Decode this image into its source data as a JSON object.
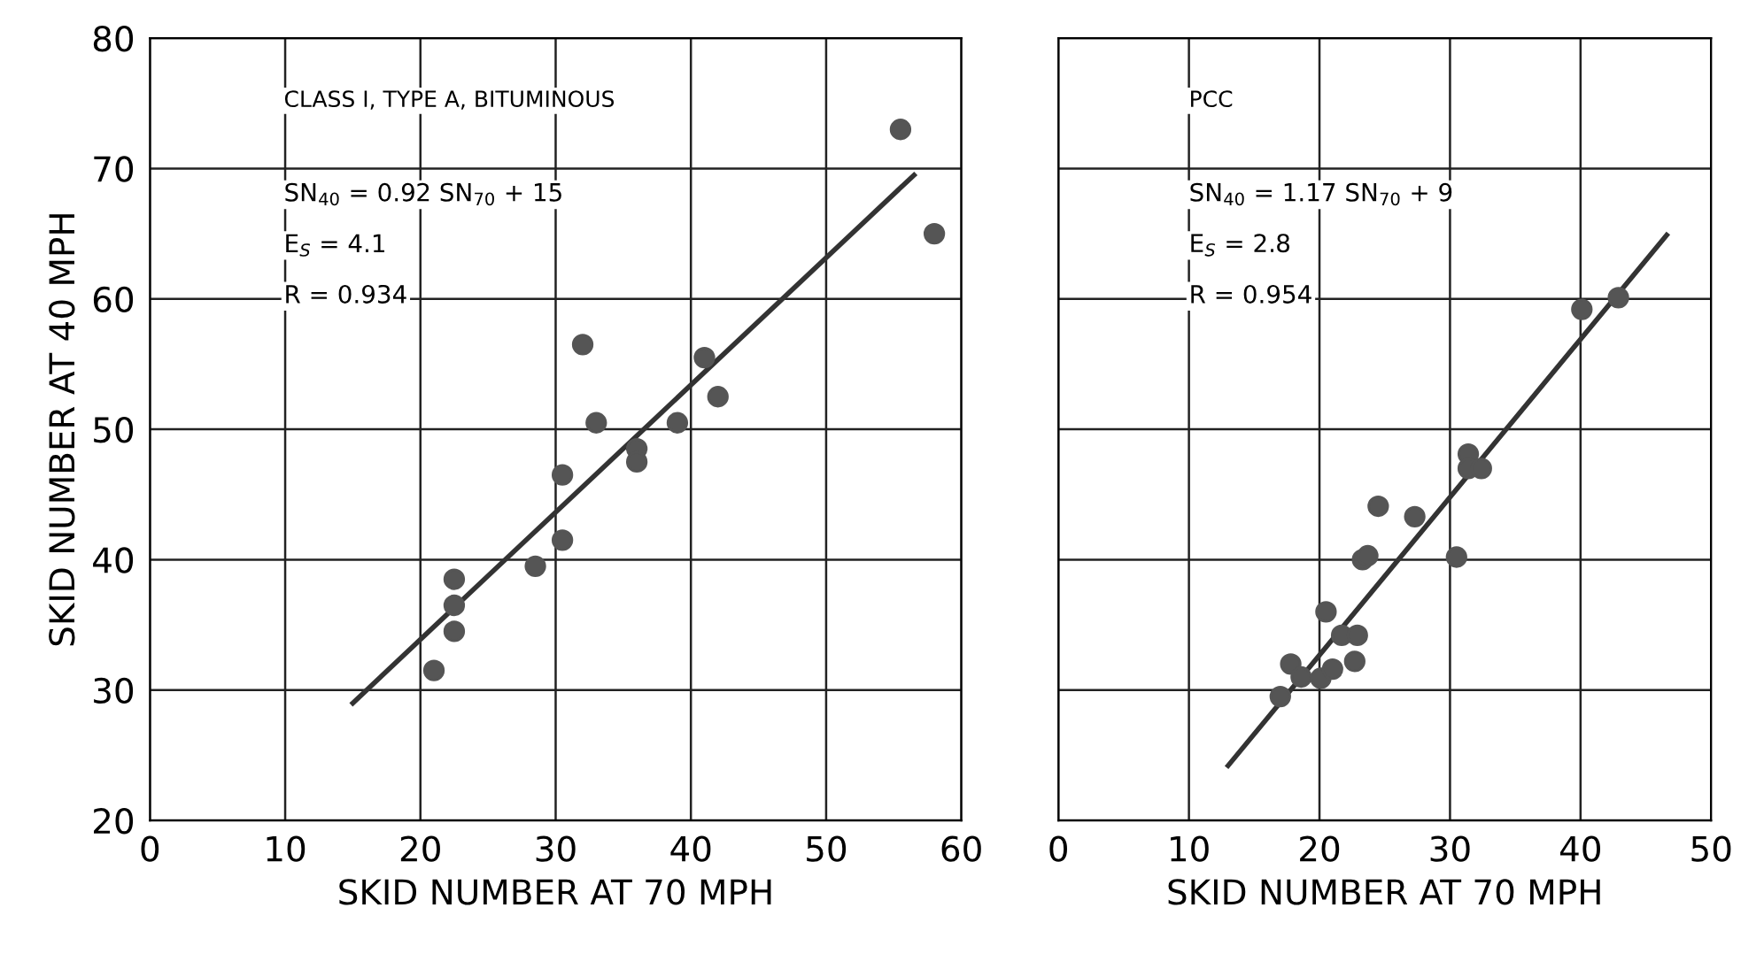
{
  "chart_data": [
    {
      "type": "scatter",
      "xlabel": "SKID NUMBER AT 70 MPH",
      "ylabel": "SKID NUMBER AT 40 MPH",
      "annotations": [
        "CLASS I, TYPE A, BITUMINOUS",
        "SN$_{40}$ = 0.92 SN$_{70}$ + 15",
        "E$_{S}$ = 4.1",
        "R = 0.934"
      ],
      "xlim": [
        0,
        60
      ],
      "ylim": [
        20,
        80
      ],
      "xticks": [
        0,
        10,
        20,
        30,
        40,
        50,
        60
      ],
      "yticks": [
        20,
        30,
        40,
        50,
        60,
        70,
        80
      ],
      "grid": true,
      "series": [
        {
          "marker": "circle",
          "color": "#555555",
          "x": [
            21,
            22.5,
            22.5,
            22.5,
            28.5,
            30.5,
            30.5,
            32,
            33,
            36,
            36,
            39,
            41,
            42,
            55.5,
            58
          ],
          "values": [
            31.5,
            38.5,
            36.5,
            34.5,
            39.5,
            41.5,
            46.5,
            56.5,
            50.5,
            48.5,
            47.5,
            50.5,
            55.5,
            52.5,
            73,
            65
          ]
        },
        {
          "type": "line",
          "color": "#333333",
          "x": [
            15,
            56.5
          ],
          "values": [
            29,
            69.5
          ]
        }
      ]
    },
    {
      "type": "scatter",
      "xlabel": "SKID NUMBER AT 70 MPH",
      "annotations": [
        "PCC",
        "SN$_{40}$ = 1.17 SN$_{70}$ + 9",
        "E$_{S}$ = 2.8",
        "R = 0.954"
      ],
      "xlim": [
        0,
        50
      ],
      "ylim": [
        20,
        80
      ],
      "xticks": [
        0,
        10,
        20,
        30,
        40,
        50
      ],
      "yticks": [
        20,
        30,
        40,
        50,
        60,
        70,
        80
      ],
      "tick_labels": "x",
      "grid": true,
      "series": [
        {
          "marker": "circle",
          "color": "#555555",
          "x": [
            17,
            17.8,
            18.6,
            20.5,
            20.1,
            21,
            21.7,
            22.9,
            22.7,
            23.3,
            23.7,
            24.5,
            27.3,
            30.5,
            31.4,
            31.4,
            32.4,
            40.1,
            42.9
          ],
          "values": [
            29.5,
            32,
            31,
            36,
            30.9,
            31.6,
            34.2,
            34.2,
            32.2,
            40,
            40.3,
            44.1,
            43.3,
            40.2,
            48.1,
            47,
            47,
            59.2,
            60.1
          ]
        },
        {
          "type": "line",
          "color": "#333333",
          "x": [
            13,
            46.6
          ],
          "values": [
            24.2,
            64.9
          ]
        }
      ]
    }
  ]
}
